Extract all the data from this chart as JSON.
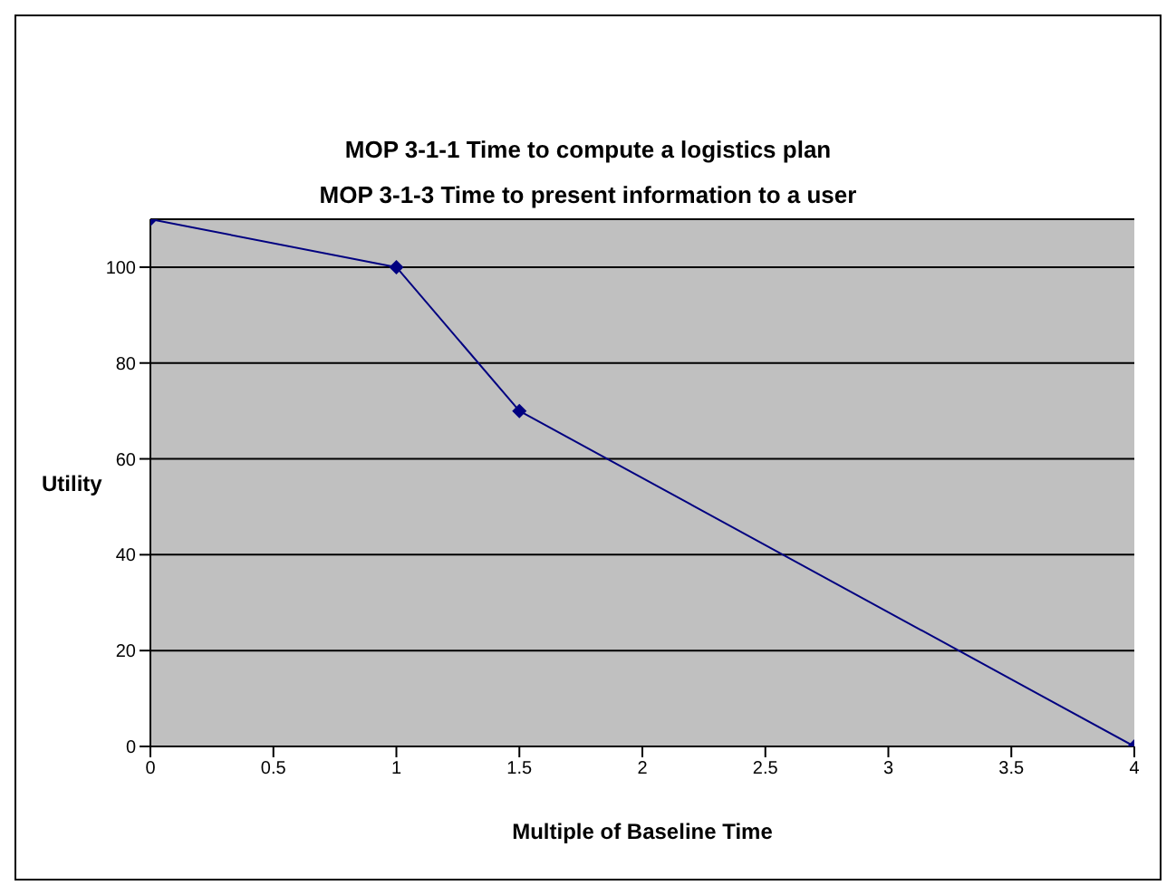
{
  "chart_data": {
    "type": "line",
    "title": "MOP 3-1-1 Time to compute a logistics plan",
    "subtitle": "MOP 3-1-3 Time to present information to a user",
    "xlabel": "Multiple of Baseline Time",
    "ylabel": "Utility",
    "x": [
      0,
      1,
      1.5,
      4
    ],
    "series": [
      {
        "color": "#000080",
        "values": [
          110,
          100,
          70,
          0
        ]
      }
    ],
    "xlim": [
      0,
      4
    ],
    "xticks": [
      0,
      0.5,
      1,
      1.5,
      2,
      2.5,
      3,
      3.5,
      4
    ],
    "ylim": [
      0,
      110
    ],
    "yticks": [
      0,
      20,
      40,
      60,
      80,
      100
    ],
    "grid": "y",
    "marker": "diamond",
    "line_style": "solid"
  }
}
